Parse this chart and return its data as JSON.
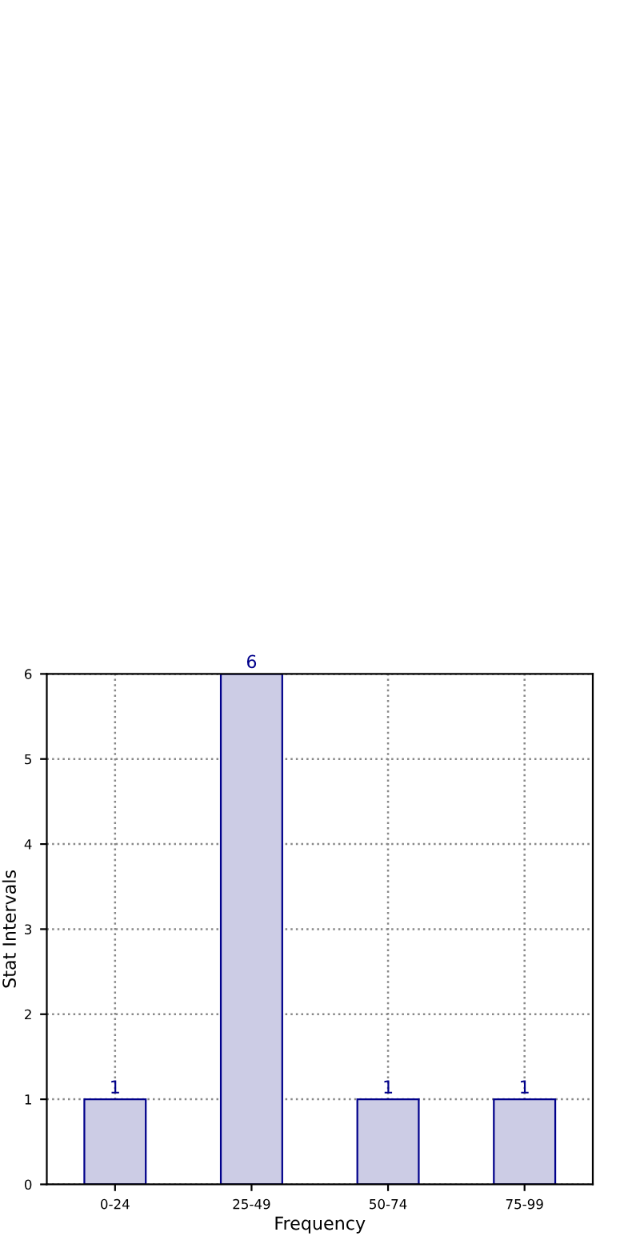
{
  "chart_data": {
    "type": "bar",
    "xlabel": "Frequency",
    "ylabel": "Stat Intervals",
    "categories": [
      "0-24",
      "25-49",
      "50-74",
      "75-99"
    ],
    "values": [
      1,
      6,
      1,
      1
    ],
    "color": "#cccce5",
    "ylim": [
      0,
      6
    ],
    "yticks": [
      0,
      1,
      2,
      3,
      4,
      5,
      6
    ],
    "grid": true,
    "data_labels": true
  }
}
